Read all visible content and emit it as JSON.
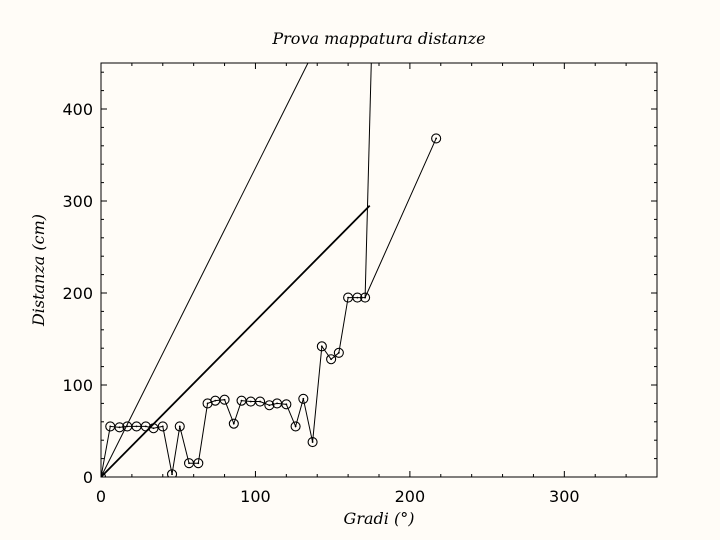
{
  "chart_data": {
    "type": "line",
    "title": "Prova mappatura distanze",
    "xlabel": "Gradi (°)",
    "ylabel": "Distanza (cm)",
    "xlim": [
      0,
      360
    ],
    "ylim": [
      0,
      450
    ],
    "xticks": [
      0,
      100,
      200,
      300
    ],
    "yticks": [
      0,
      100,
      200,
      300,
      400
    ],
    "grid": false,
    "series": [
      {
        "type": "line",
        "style": "thin",
        "x": [
          0,
          134
        ],
        "y": [
          0,
          450
        ]
      },
      {
        "type": "line",
        "style": "medium",
        "x": [
          0,
          174
        ],
        "y": [
          0,
          295
        ]
      },
      {
        "type": "line",
        "style": "thin",
        "x": [
          171,
          175
        ],
        "y": [
          195,
          450
        ]
      },
      {
        "type": "line-markers",
        "marker": "circle-dot",
        "x": [
          0,
          6,
          12,
          17,
          23,
          29,
          34,
          40,
          46,
          51,
          57,
          63,
          69,
          74,
          80,
          86,
          91,
          97,
          103,
          109,
          114,
          120,
          126,
          131,
          137,
          143,
          149,
          154,
          160,
          166,
          171,
          217
        ],
        "y": [
          0,
          55,
          54,
          55,
          55,
          55,
          53,
          55,
          3,
          55,
          15,
          15,
          80,
          83,
          84,
          58,
          83,
          82,
          82,
          78,
          80,
          79,
          55,
          85,
          38,
          142,
          128,
          135,
          195,
          195,
          195,
          368
        ]
      }
    ]
  }
}
